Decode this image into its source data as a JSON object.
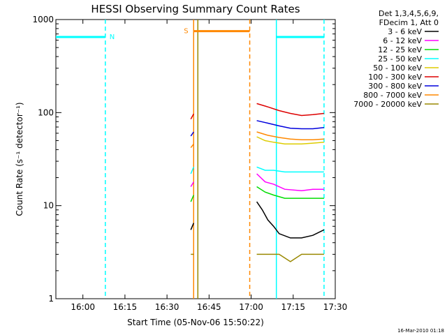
{
  "chart_data": {
    "type": "line",
    "title": "HESSI Observing Summary Count Rates",
    "xlabel": "Start Time (05-Nov-06 15:50:22)",
    "ylabel": "Count Rate (s⁻¹ detector⁻¹)",
    "y_scale": "log",
    "ylim": [
      1,
      1000
    ],
    "x_start": "15:50:22",
    "x_end": "17:30",
    "x_ticks": [
      "16:00",
      "16:15",
      "16:30",
      "16:45",
      "17:00",
      "17:15",
      "17:30"
    ],
    "y_ticks": [
      "1",
      "10",
      "100",
      "1000"
    ],
    "legend": {
      "placement": "top-right",
      "header": [
        "Det 1,3,4,5,6,9,",
        "FDecim 1, Att 0"
      ],
      "series_colors": [
        "#000000",
        "#ff00ff",
        "#00dd00",
        "#00ffff",
        "#ddcc00",
        "#dd0000",
        "#0000dd",
        "#ff8800",
        "#998800"
      ]
    },
    "series": [
      {
        "name": "3 - 6 keV",
        "color": "#000000",
        "segments": [
          {
            "times": [
              "16:38:30",
              "16:39:30"
            ],
            "values": [
              5.5,
              6.5
            ]
          },
          {
            "times": [
              "17:02",
              "17:04",
              "17:06",
              "17:08",
              "17:10",
              "17:14",
              "17:18",
              "17:22",
              "17:26"
            ],
            "values": [
              11,
              9,
              7,
              6,
              5,
              4.5,
              4.5,
              4.8,
              5.5
            ]
          }
        ]
      },
      {
        "name": "6 - 12 keV",
        "color": "#ff00ff",
        "segments": [
          {
            "times": [
              "16:38:30",
              "16:39:30"
            ],
            "values": [
              16,
              18
            ]
          },
          {
            "times": [
              "17:02",
              "17:05",
              "17:08",
              "17:12",
              "17:18",
              "17:22",
              "17:26"
            ],
            "values": [
              22,
              18,
              17,
              15,
              14.5,
              15,
              15
            ]
          }
        ]
      },
      {
        "name": "12 - 25 keV",
        "color": "#00dd00",
        "segments": [
          {
            "times": [
              "16:38:30",
              "16:39:30"
            ],
            "values": [
              11,
              13
            ]
          },
          {
            "times": [
              "17:02",
              "17:05",
              "17:08",
              "17:12",
              "17:18",
              "17:22",
              "17:26"
            ],
            "values": [
              16,
              14,
              13,
              12,
              12,
              12,
              12
            ]
          }
        ]
      },
      {
        "name": "25 - 50 keV",
        "color": "#00ffff",
        "segments": [
          {
            "times": [
              "16:38:30",
              "16:39:30"
            ],
            "values": [
              22,
              26
            ]
          },
          {
            "times": [
              "17:02",
              "17:05",
              "17:08",
              "17:12",
              "17:18",
              "17:22",
              "17:26"
            ],
            "values": [
              26,
              24,
              24,
              23,
              23,
              23,
              23
            ]
          }
        ]
      },
      {
        "name": "50 - 100 keV",
        "color": "#ddcc00",
        "segments": [
          {
            "times": [
              "17:02",
              "17:05",
              "17:08",
              "17:12",
              "17:18",
              "17:22",
              "17:26"
            ],
            "values": [
              55,
              50,
              48,
              46,
              46,
              47,
              48
            ]
          }
        ]
      },
      {
        "name": "100 - 300 keV",
        "color": "#dd0000",
        "segments": [
          {
            "times": [
              "16:38:30",
              "16:39:30"
            ],
            "values": [
              85,
              97
            ]
          },
          {
            "times": [
              "17:02",
              "17:06",
              "17:10",
              "17:14",
              "17:18",
              "17:22",
              "17:26"
            ],
            "values": [
              125,
              115,
              105,
              98,
              93,
              95,
              98
            ]
          }
        ]
      },
      {
        "name": "300 - 800 keV",
        "color": "#0000dd",
        "segments": [
          {
            "times": [
              "16:38:30",
              "16:39:30"
            ],
            "values": [
              56,
              62
            ]
          },
          {
            "times": [
              "17:02",
              "17:06",
              "17:10",
              "17:14",
              "17:18",
              "17:22",
              "17:26"
            ],
            "values": [
              82,
              77,
              72,
              68,
              67,
              67,
              69
            ]
          }
        ]
      },
      {
        "name": "800 - 7000 keV",
        "color": "#ff8800",
        "segments": [
          {
            "times": [
              "16:38:30",
              "16:39:30"
            ],
            "values": [
              42,
              46
            ]
          },
          {
            "times": [
              "17:02",
              "17:06",
              "17:10",
              "17:14",
              "17:18",
              "17:22",
              "17:26"
            ],
            "values": [
              62,
              57,
              54,
              52,
              51,
              51,
              52
            ]
          }
        ]
      },
      {
        "name": "7000 - 20000 keV",
        "color": "#998800",
        "segments": [
          {
            "times": [
              "16:38:30",
              "16:39:30"
            ],
            "values": [
              3,
              3
            ]
          },
          {
            "times": [
              "17:02",
              "17:06",
              "17:10",
              "17:14",
              "17:18",
              "17:22",
              "17:26"
            ],
            "values": [
              3,
              3,
              3,
              2.5,
              3,
              3,
              3
            ]
          }
        ]
      }
    ],
    "observing_flags": [
      {
        "label": "N",
        "color": "#00ffff",
        "times": [
          "15:50:22",
          "16:08"
        ],
        "level": 650
      },
      {
        "label": "S",
        "color": "#ff8800",
        "times": [
          "16:39:30",
          "16:59:30"
        ],
        "level": 750
      },
      {
        "label": "",
        "color": "#00ffff",
        "times": [
          "17:09",
          "17:26"
        ],
        "level": 650
      }
    ],
    "vertical_markers": [
      {
        "time": "16:08",
        "color": "#00ffff",
        "style": "dashed"
      },
      {
        "time": "16:39:30",
        "color": "#ff8800",
        "style": "solid"
      },
      {
        "time": "16:41",
        "color": "#998800",
        "style": "solid"
      },
      {
        "time": "16:59:30",
        "color": "#ff8800",
        "style": "dashed"
      },
      {
        "time": "17:09",
        "color": "#00ffff",
        "style": "solid"
      },
      {
        "time": "17:26",
        "color": "#00ffff",
        "style": "dashed"
      }
    ]
  },
  "footer": {
    "stamp": "16-Mar-2010 01:18"
  }
}
